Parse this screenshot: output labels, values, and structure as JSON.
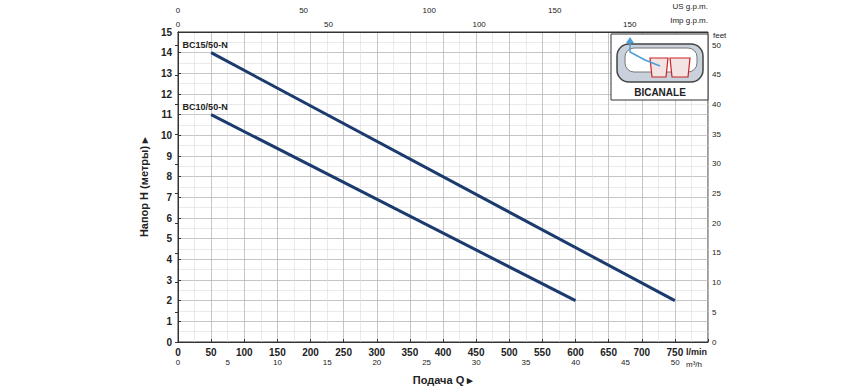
{
  "chart_data": {
    "type": "line",
    "x_label": "Подача Q ▸",
    "y_label": "Напор H (метры) ▸",
    "x_unit": "l/min",
    "xlim": [
      0,
      800
    ],
    "xticks": [
      0,
      50,
      100,
      150,
      200,
      250,
      300,
      350,
      400,
      450,
      500,
      550,
      600,
      650,
      700,
      750
    ],
    "ylim": [
      0,
      15
    ],
    "yticks": [
      0,
      1,
      2,
      3,
      4,
      5,
      6,
      7,
      8,
      9,
      10,
      11,
      12,
      13,
      14,
      15
    ],
    "y2_label": "feet",
    "y2lim": [
      0,
      52.2
    ],
    "y2ticks": [
      0,
      5,
      10,
      15,
      20,
      25,
      30,
      35,
      40,
      45,
      50
    ],
    "x2_unit": "m³/h",
    "x2lim": [
      0,
      53.3
    ],
    "x2ticks": [
      0,
      5,
      10,
      15,
      20,
      25,
      30,
      35,
      40,
      45,
      50
    ],
    "x_top_axes": [
      {
        "unit": "US g.p.m.",
        "lim": [
          0,
          211
        ],
        "ticks": [
          0,
          50,
          100,
          150
        ]
      },
      {
        "unit": "Imp g.p.m.",
        "lim": [
          0,
          176
        ],
        "ticks": [
          0,
          50,
          100,
          150
        ]
      }
    ],
    "series": [
      {
        "name": "BC15/50-N",
        "color": "#1b3a6e",
        "x": [
          50,
          750
        ],
        "values": [
          14,
          2
        ]
      },
      {
        "name": "BC10/50-N",
        "color": "#1b3a6e",
        "x": [
          50,
          600
        ],
        "values": [
          11,
          2
        ]
      }
    ],
    "inset_label": "BICANALE",
    "grid": true
  }
}
